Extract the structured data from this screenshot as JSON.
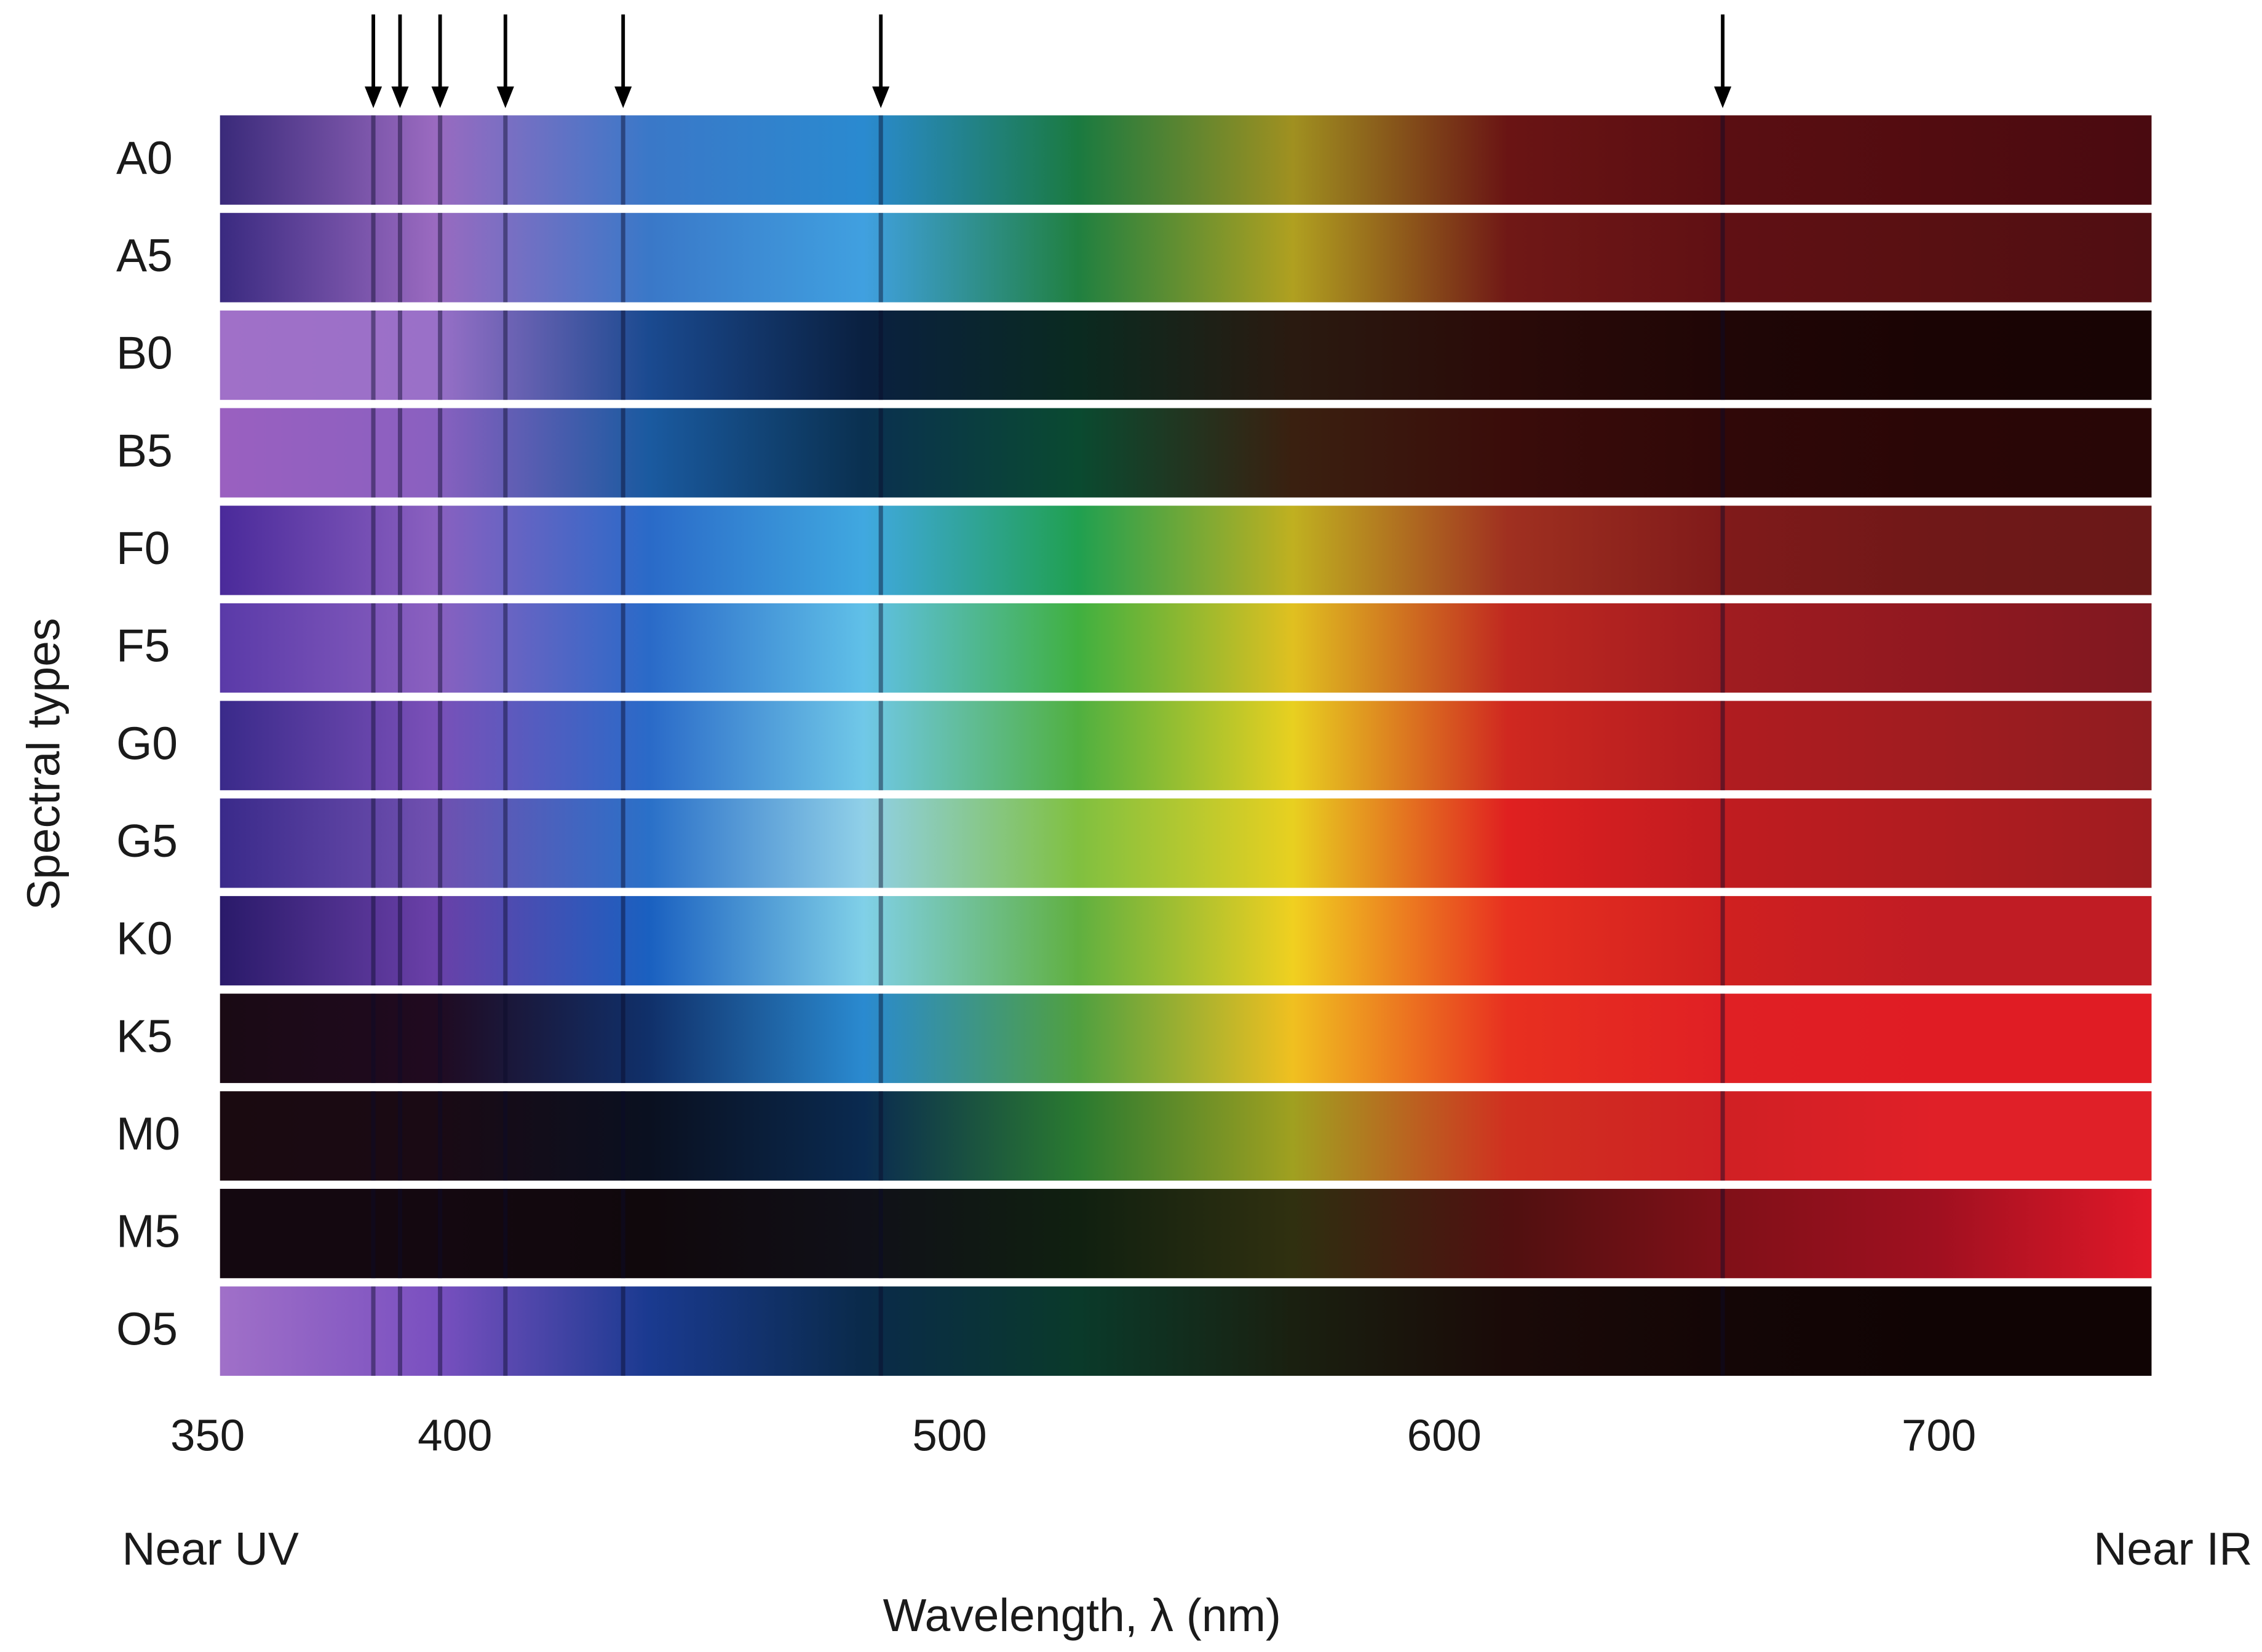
{
  "chart_data": {
    "type": "spectra",
    "y_label": "Spectral types",
    "x_label": "Wavelength, λ (nm)",
    "x_annotations": [
      "Near UV",
      "Near IR"
    ],
    "xlim": [
      352.5,
      743
    ],
    "xticks": [
      350,
      400,
      500,
      600,
      700
    ],
    "line_markers": [
      383.5,
      388.9,
      397.0,
      410.2,
      434.0,
      486.1,
      656.3
    ],
    "series": [
      {
        "name": "A0",
        "colors": [
          "#3a2a7a",
          "#9a6ac0",
          "#3a78c8",
          "#2a8ad0",
          "#1a7a40",
          "#a09020",
          "#6a1414",
          "#5a0e12",
          "#520c10",
          "#4a0a10"
        ]
      },
      {
        "name": "A5",
        "colors": [
          "#3a2a80",
          "#9a6ac0",
          "#3a78c8",
          "#40a0e0",
          "#208040",
          "#b0a020",
          "#701816",
          "#601014",
          "#581012",
          "#500e12"
        ]
      },
      {
        "name": "B0",
        "colors": [
          "#a070c8",
          "#9a70c8",
          "#1a4a90",
          "#0a2040",
          "#0a2a20",
          "#2a1a10",
          "#2a0a08",
          "#200606",
          "#1a0404",
          "#180404"
        ]
      },
      {
        "name": "B5",
        "colors": [
          "#9a60c0",
          "#8a60c0",
          "#1a5aa0",
          "#0a3050",
          "#0a4a30",
          "#3a2010",
          "#3a0c0a",
          "#300808",
          "#2a0606",
          "#280606"
        ]
      },
      {
        "name": "F0",
        "colors": [
          "#4a2a9a",
          "#8a60c0",
          "#2a6ac8",
          "#40a8e0",
          "#20a050",
          "#c0b020",
          "#a03020",
          "#801a1a",
          "#701818",
          "#6a1818"
        ]
      },
      {
        "name": "F5",
        "colors": [
          "#5a3aa8",
          "#8a60c0",
          "#2a6ac8",
          "#60c0e8",
          "#40b040",
          "#e0c020",
          "#c02820",
          "#a01c20",
          "#901820",
          "#801820"
        ]
      },
      {
        "name": "G0",
        "colors": [
          "#3a2a8a",
          "#7a50b8",
          "#2a6ac8",
          "#70c8e8",
          "#50b040",
          "#e8d020",
          "#d02820",
          "#b01c20",
          "#a01c20",
          "#901c20"
        ]
      },
      {
        "name": "G5",
        "colors": [
          "#3a2a8a",
          "#7050b0",
          "#2a70c8",
          "#90d0e8",
          "#80c040",
          "#e8d020",
          "#e02020",
          "#c01c20",
          "#b01c20",
          "#a01c20"
        ]
      },
      {
        "name": "K0",
        "colors": [
          "#2a1a6a",
          "#6a40a8",
          "#1a60c0",
          "#80d0e8",
          "#60b040",
          "#f0d020",
          "#e83020",
          "#d02020",
          "#c01c24",
          "#c01c24"
        ]
      },
      {
        "name": "K5",
        "colors": [
          "#1a0a14",
          "#200a20",
          "#10306a",
          "#2a8ad0",
          "#50a040",
          "#f0c020",
          "#e83020",
          "#e02024",
          "#e01c24",
          "#e01c24"
        ]
      },
      {
        "name": "M0",
        "colors": [
          "#1a0a10",
          "#1a0a14",
          "#0a1020",
          "#0a2a50",
          "#2a7a30",
          "#a0a020",
          "#d03020",
          "#d02024",
          "#e02028",
          "#e02028"
        ]
      },
      {
        "name": "M5",
        "colors": [
          "#140810",
          "#140810",
          "#10080c",
          "#101018",
          "#102010",
          "#303010",
          "#501010",
          "#801018",
          "#a01020",
          "#e01828"
        ]
      },
      {
        "name": "O5",
        "colors": [
          "#a070c8",
          "#7a50c0",
          "#1a3a90",
          "#0a2a4a",
          "#0a3a2a",
          "#1a2010",
          "#1a0a08",
          "#140606",
          "#100404",
          "#100404"
        ]
      }
    ]
  }
}
